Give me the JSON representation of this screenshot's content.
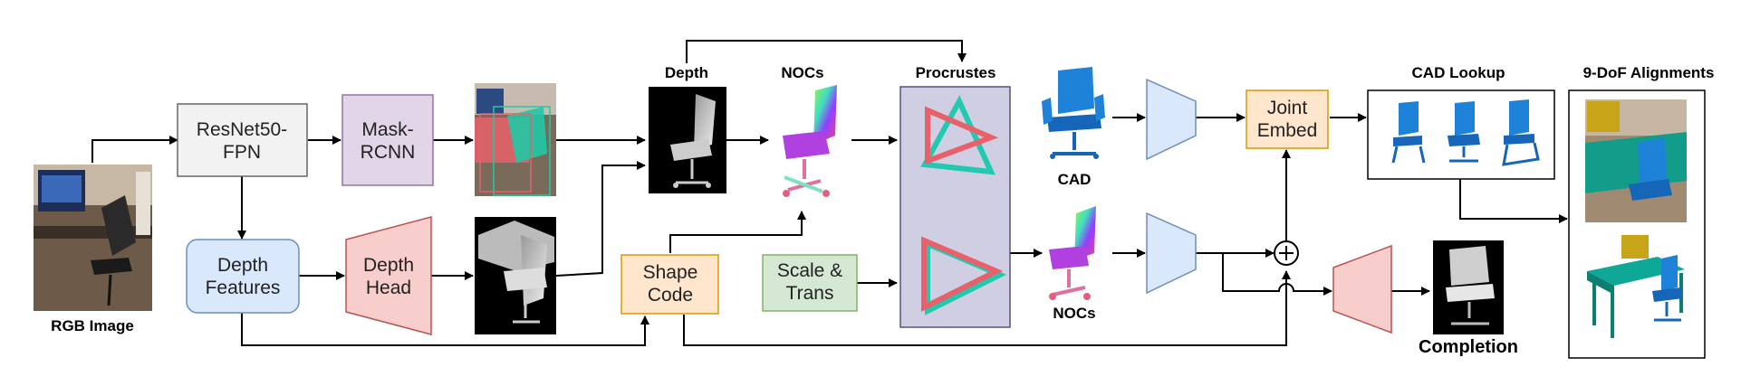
{
  "labels": {
    "rgb_image": "RGB Image",
    "depth_top": "Depth",
    "nocs_top": "NOCs",
    "procrustes": "Procrustes",
    "cad": "CAD",
    "cad_lookup": "CAD Lookup",
    "alignments": "9-DoF Alignments",
    "nocs_bottom": "NOCs",
    "completion": "Completion"
  },
  "boxes": {
    "resnet_l1": "ResNet50-",
    "resnet_l2": "FPN",
    "mask_l1": "Mask-",
    "mask_l2": "RCNN",
    "depth_feat_l1": "Depth",
    "depth_feat_l2": "Features",
    "depth_head_l1": "Depth",
    "depth_head_l2": "Head",
    "shape_l1": "Shape",
    "shape_l2": "Code",
    "scale_l1": "Scale &",
    "scale_l2": "Trans",
    "joint_l1": "Joint",
    "joint_l2": "Embed"
  },
  "colors": {
    "resnet_fill": "#f2f2f2",
    "mask_fill": "#e1d5e7",
    "blue_fill": "#dae8fc",
    "red_fill": "#f8cecc",
    "orange_fill": "#ffe6cc",
    "green_fill": "#d5e8d4",
    "procrustes_fill": "#d0cee2",
    "chair_blue": "#1f82d9"
  }
}
